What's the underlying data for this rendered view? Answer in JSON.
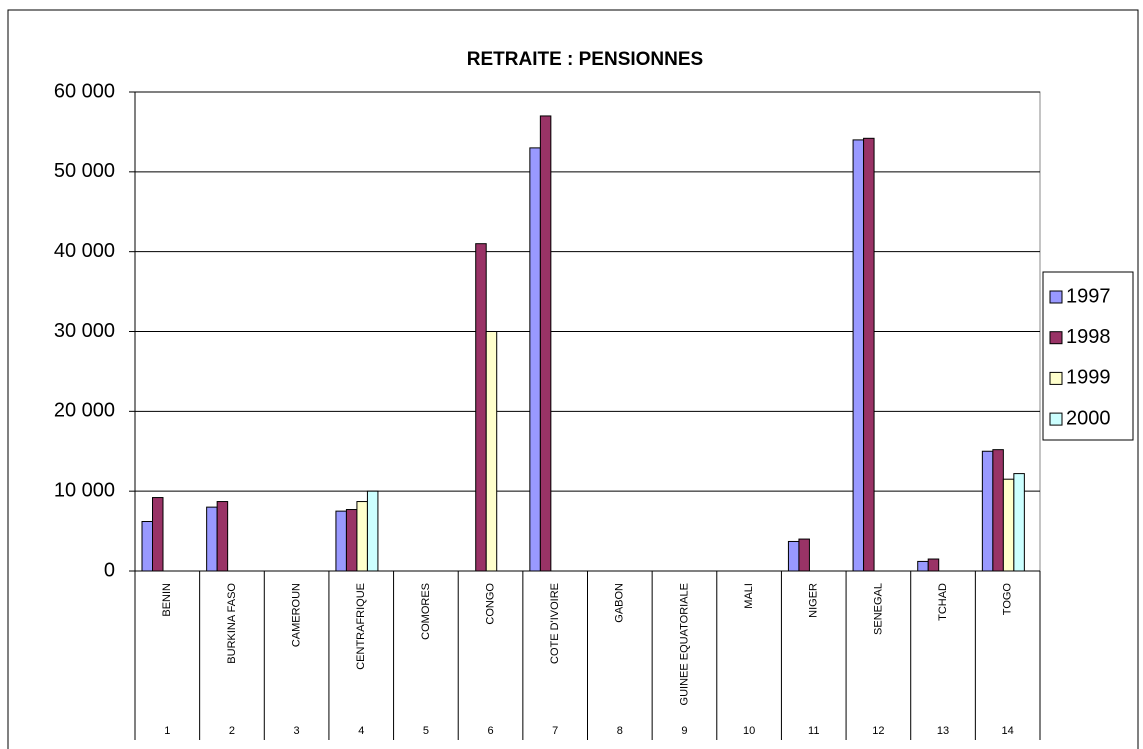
{
  "chart_data": {
    "type": "bar",
    "title": "RETRAITE : PENSIONNES",
    "categories": [
      "BENIN",
      "BURKINA FASO",
      "CAMEROUN",
      "CENTRAFRIQUE",
      "COMORES",
      "CONGO",
      "COTE D'IVOIRE",
      "GABON",
      "GUINEE EQUATORIALE",
      "MALI",
      "NIGER",
      "SENEGAL",
      "TCHAD",
      "TOGO"
    ],
    "category_numbers": [
      1,
      2,
      3,
      4,
      5,
      6,
      7,
      8,
      9,
      10,
      11,
      12,
      13,
      14
    ],
    "series": [
      {
        "name": "1997",
        "color": "#9999ff",
        "values": [
          6200,
          8000,
          null,
          7500,
          null,
          null,
          53000,
          null,
          null,
          null,
          3700,
          54000,
          1200,
          15000
        ]
      },
      {
        "name": "1998",
        "color": "#993366",
        "values": [
          9200,
          8700,
          null,
          7700,
          null,
          41000,
          57000,
          null,
          null,
          null,
          4000,
          54200,
          1500,
          15200
        ]
      },
      {
        "name": "1999",
        "color": "#ffffcc",
        "values": [
          null,
          null,
          null,
          8700,
          null,
          30000,
          null,
          null,
          null,
          null,
          null,
          null,
          null,
          11500
        ]
      },
      {
        "name": "2000",
        "color": "#ccffff",
        "values": [
          null,
          null,
          null,
          10000,
          null,
          null,
          null,
          null,
          null,
          null,
          null,
          null,
          null,
          12200
        ]
      }
    ],
    "ylim": [
      0,
      60000
    ],
    "yticks": [
      0,
      {
        "value": 10000,
        "label": "10 000"
      },
      {
        "value": 20000,
        "label": "20 000"
      },
      {
        "value": 30000,
        "label": "30 000"
      },
      {
        "value": 40000,
        "label": "40 000"
      },
      {
        "value": 50000,
        "label": "50 000"
      },
      {
        "value": 60000,
        "label": "60 000"
      }
    ],
    "grid": true,
    "legend": "right"
  }
}
